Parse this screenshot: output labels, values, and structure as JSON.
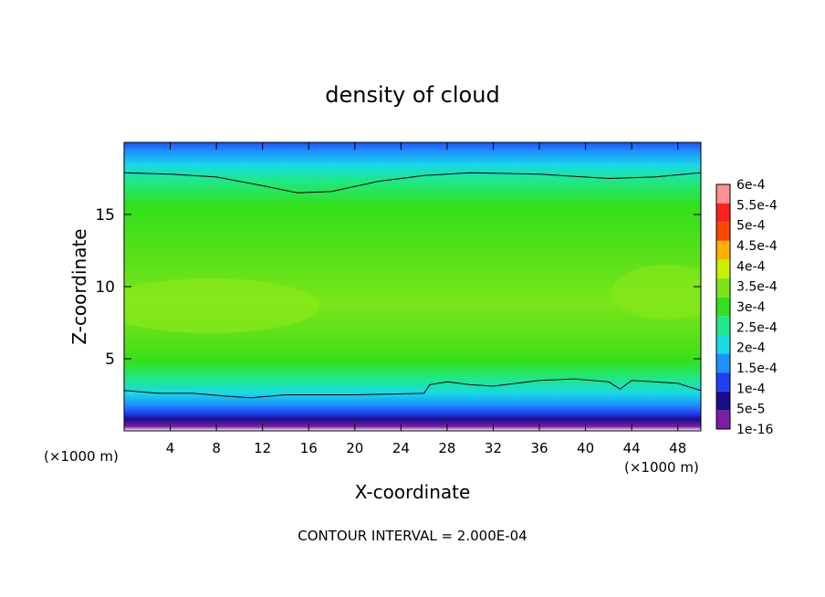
{
  "chart_data": {
    "type": "heatmap",
    "title": "density of cloud",
    "xlabel": "X-coordinate",
    "ylabel": "Z-coordinate",
    "x_units": "(×1000 m)",
    "x_units_right": "(×1000 m)",
    "footer": "CONTOUR INTERVAL = 2.000E-04",
    "xlim": [
      0,
      50
    ],
    "ylim": [
      0,
      20
    ],
    "x_ticks": [
      4,
      8,
      12,
      16,
      20,
      24,
      28,
      32,
      36,
      40,
      44,
      48
    ],
    "y_ticks": [
      5,
      10,
      15
    ],
    "x_tick_labels": [
      "4",
      "8",
      "12",
      "16",
      "20",
      "24",
      "28",
      "32",
      "36",
      "40",
      "44",
      "48"
    ],
    "y_tick_labels": [
      "5",
      "10",
      "15"
    ],
    "colorbar": {
      "levels": [
        {
          "label": "1e-16",
          "color": "#7b1fa2"
        },
        {
          "label": "5e-5",
          "color": "#1a0d8c"
        },
        {
          "label": "1e-4",
          "color": "#1f3ff0"
        },
        {
          "label": "1.5e-4",
          "color": "#1e90ff"
        },
        {
          "label": "2e-4",
          "color": "#18d9e6"
        },
        {
          "label": "2.5e-4",
          "color": "#1ee88a"
        },
        {
          "label": "3e-4",
          "color": "#33e01a"
        },
        {
          "label": "3.5e-4",
          "color": "#7ae61a"
        },
        {
          "label": "4e-4",
          "color": "#c8f000"
        },
        {
          "label": "4.5e-4",
          "color": "#ffb000"
        },
        {
          "label": "5e-4",
          "color": "#ff4500"
        },
        {
          "label": "5.5e-4",
          "color": "#ff2020"
        },
        {
          "label": "6e-4",
          "color": "#ff9090"
        }
      ]
    },
    "upper_contour_z": [
      [
        0,
        17.9
      ],
      [
        4,
        17.8
      ],
      [
        8,
        17.6
      ],
      [
        12,
        17.0
      ],
      [
        15,
        16.5
      ],
      [
        18,
        16.6
      ],
      [
        22,
        17.3
      ],
      [
        26,
        17.7
      ],
      [
        30,
        17.9
      ],
      [
        36,
        17.8
      ],
      [
        42,
        17.5
      ],
      [
        46,
        17.6
      ],
      [
        50,
        17.9
      ]
    ],
    "lower_contour_z": [
      [
        0,
        2.8
      ],
      [
        3,
        2.6
      ],
      [
        6,
        2.6
      ],
      [
        9,
        2.4
      ],
      [
        11,
        2.3
      ],
      [
        14,
        2.5
      ],
      [
        20,
        2.5
      ],
      [
        26,
        2.6
      ],
      [
        26.5,
        3.2
      ],
      [
        28,
        3.4
      ],
      [
        30,
        3.2
      ],
      [
        32,
        3.1
      ],
      [
        36,
        3.5
      ],
      [
        39,
        3.6
      ],
      [
        42,
        3.4
      ],
      [
        43,
        2.9
      ],
      [
        44,
        3.5
      ],
      [
        48,
        3.3
      ],
      [
        50,
        2.8
      ]
    ]
  }
}
